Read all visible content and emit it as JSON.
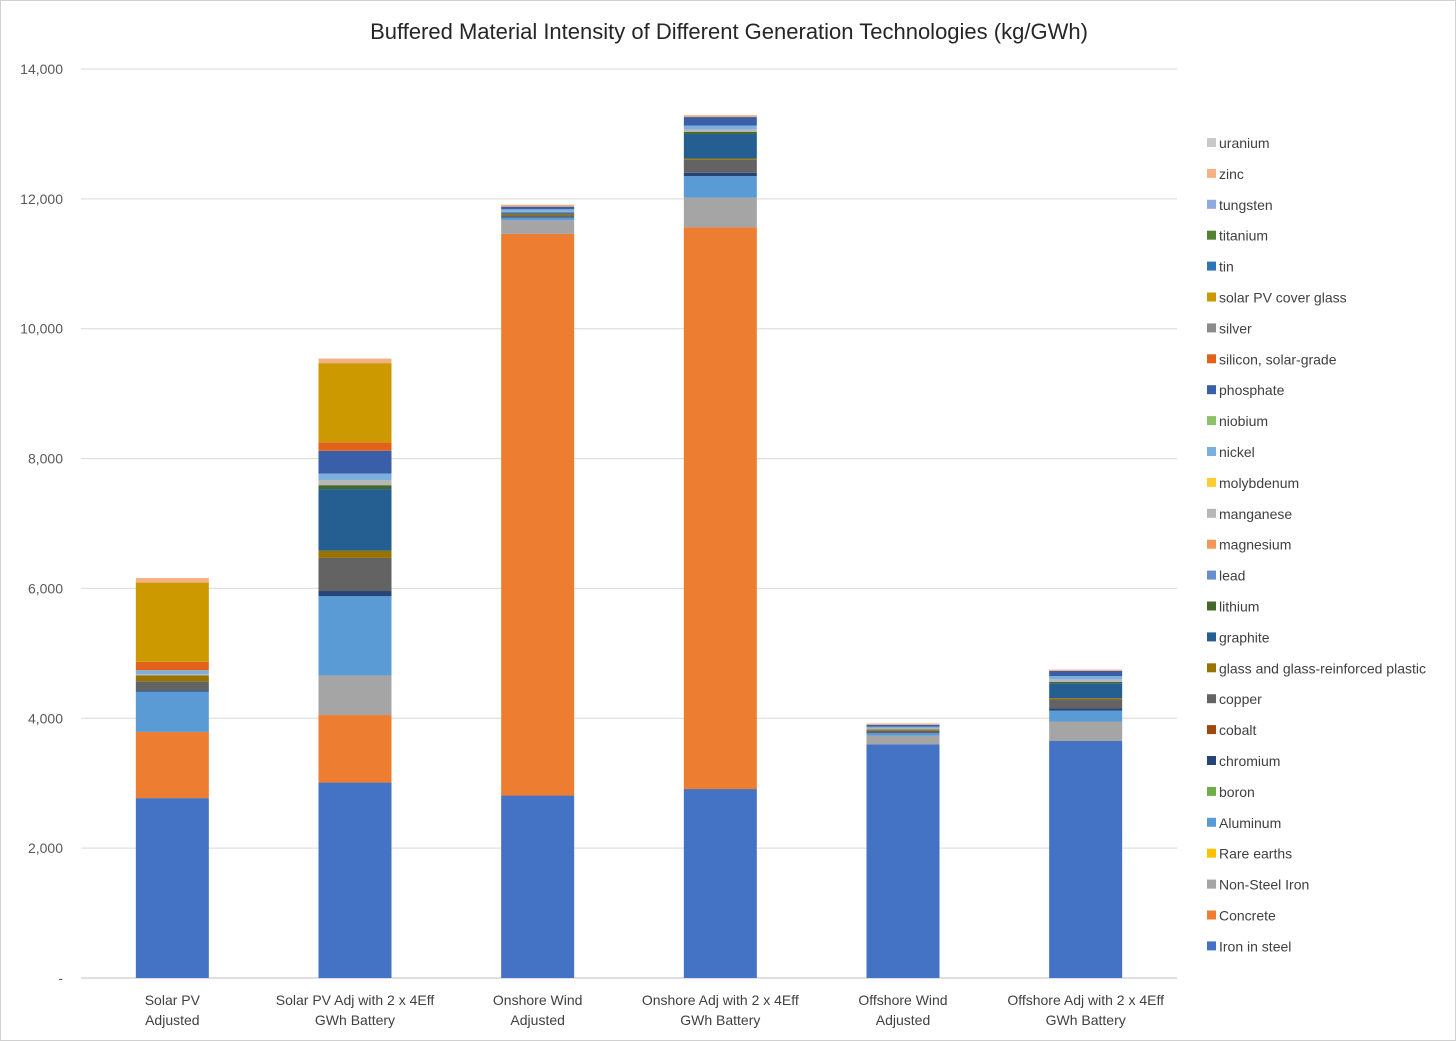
{
  "chart_data": {
    "type": "bar",
    "stacked": true,
    "title": "Buffered Material Intensity of Different Generation Technologies (kg/GWh)",
    "xlabel": "",
    "ylabel": "",
    "ylim": [
      0,
      14000
    ],
    "yticks": [
      0,
      2000,
      4000,
      6000,
      8000,
      10000,
      12000,
      14000
    ],
    "ytick_labels": [
      "-",
      "2,000",
      "4,000",
      "6,000",
      "8,000",
      "10,000",
      "12,000",
      "14,000"
    ],
    "grid": true,
    "legend_position": "right",
    "categories": [
      [
        "Solar PV",
        "Adjusted"
      ],
      [
        "Solar PV Adj with 2 x 4Eff",
        "GWh Battery"
      ],
      [
        "Onshore Wind",
        "Adjusted"
      ],
      [
        "Onshore Adj with 2 x 4Eff",
        "GWh Battery"
      ],
      [
        "Offshore Wind",
        "Adjusted"
      ],
      [
        "Offshore Adj with 2 x 4Eff",
        "GWh Battery"
      ]
    ],
    "series": [
      {
        "name": "Iron in steel",
        "color": "#4472c4",
        "values": [
          2770,
          3010,
          2810,
          2910,
          3600,
          3650
        ]
      },
      {
        "name": "Concrete",
        "color": "#ed7d31",
        "values": [
          1020,
          1040,
          8650,
          8650,
          0,
          0
        ]
      },
      {
        "name": "Non-Steel Iron",
        "color": "#a5a5a5",
        "values": [
          0,
          610,
          210,
          460,
          130,
          300
        ]
      },
      {
        "name": "Rare earths",
        "color": "#ffc000",
        "values": [
          0,
          0,
          0,
          0,
          0,
          0
        ]
      },
      {
        "name": "Aluminum",
        "color": "#5b9bd5",
        "values": [
          620,
          1220,
          40,
          330,
          40,
          170
        ]
      },
      {
        "name": "boron",
        "color": "#70ad47",
        "values": [
          0,
          0,
          0,
          0,
          0,
          0
        ]
      },
      {
        "name": "chromium",
        "color": "#264478",
        "values": [
          20,
          80,
          10,
          50,
          10,
          30
        ]
      },
      {
        "name": "cobalt",
        "color": "#9e480e",
        "values": [
          0,
          0,
          0,
          0,
          0,
          0
        ]
      },
      {
        "name": "copper",
        "color": "#636363",
        "values": [
          140,
          510,
          30,
          200,
          30,
          140
        ]
      },
      {
        "name": "glass and glass-reinforced plastic",
        "color": "#997300",
        "values": [
          90,
          110,
          20,
          20,
          20,
          20
        ]
      },
      {
        "name": "graphite",
        "color": "#255e91",
        "values": [
          0,
          950,
          20,
          380,
          0,
          230
        ]
      },
      {
        "name": "lithium",
        "color": "#43682b",
        "values": [
          0,
          60,
          0,
          30,
          0,
          20
        ]
      },
      {
        "name": "lead",
        "color": "#698ed0",
        "values": [
          0,
          0,
          0,
          0,
          0,
          0
        ]
      },
      {
        "name": "magnesium",
        "color": "#f1975a",
        "values": [
          0,
          0,
          0,
          0,
          0,
          0
        ]
      },
      {
        "name": "manganese",
        "color": "#b7b7b7",
        "values": [
          20,
          80,
          10,
          40,
          10,
          40
        ]
      },
      {
        "name": "molybdenum",
        "color": "#ffcd33",
        "values": [
          0,
          0,
          0,
          0,
          0,
          0
        ]
      },
      {
        "name": "nickel",
        "color": "#7cafdd",
        "values": [
          60,
          100,
          40,
          60,
          30,
          50
        ]
      },
      {
        "name": "niobium",
        "color": "#8cc168",
        "values": [
          0,
          0,
          0,
          0,
          0,
          0
        ]
      },
      {
        "name": "phosphate",
        "color": "#3a5fa8",
        "values": [
          0,
          350,
          40,
          130,
          30,
          80
        ]
      },
      {
        "name": "silicon, solar-grade",
        "color": "#e2621c",
        "values": [
          130,
          130,
          0,
          0,
          0,
          0
        ]
      },
      {
        "name": "silver",
        "color": "#8b8b8b",
        "values": [
          0,
          0,
          0,
          0,
          0,
          0
        ]
      },
      {
        "name": "solar PV cover glass",
        "color": "#cc9a00",
        "values": [
          1220,
          1220,
          0,
          0,
          0,
          0
        ]
      },
      {
        "name": "tin",
        "color": "#2e75b6",
        "values": [
          0,
          0,
          0,
          0,
          0,
          0
        ]
      },
      {
        "name": "titanium",
        "color": "#548235",
        "values": [
          0,
          0,
          0,
          0,
          0,
          0
        ]
      },
      {
        "name": "tungsten",
        "color": "#8faadc",
        "values": [
          0,
          0,
          0,
          0,
          0,
          0
        ]
      },
      {
        "name": "zinc",
        "color": "#f4b183",
        "values": [
          70,
          70,
          30,
          30,
          20,
          20
        ]
      },
      {
        "name": "uranium",
        "color": "#c9c9c9",
        "values": [
          0,
          0,
          0,
          0,
          0,
          0
        ]
      }
    ]
  }
}
